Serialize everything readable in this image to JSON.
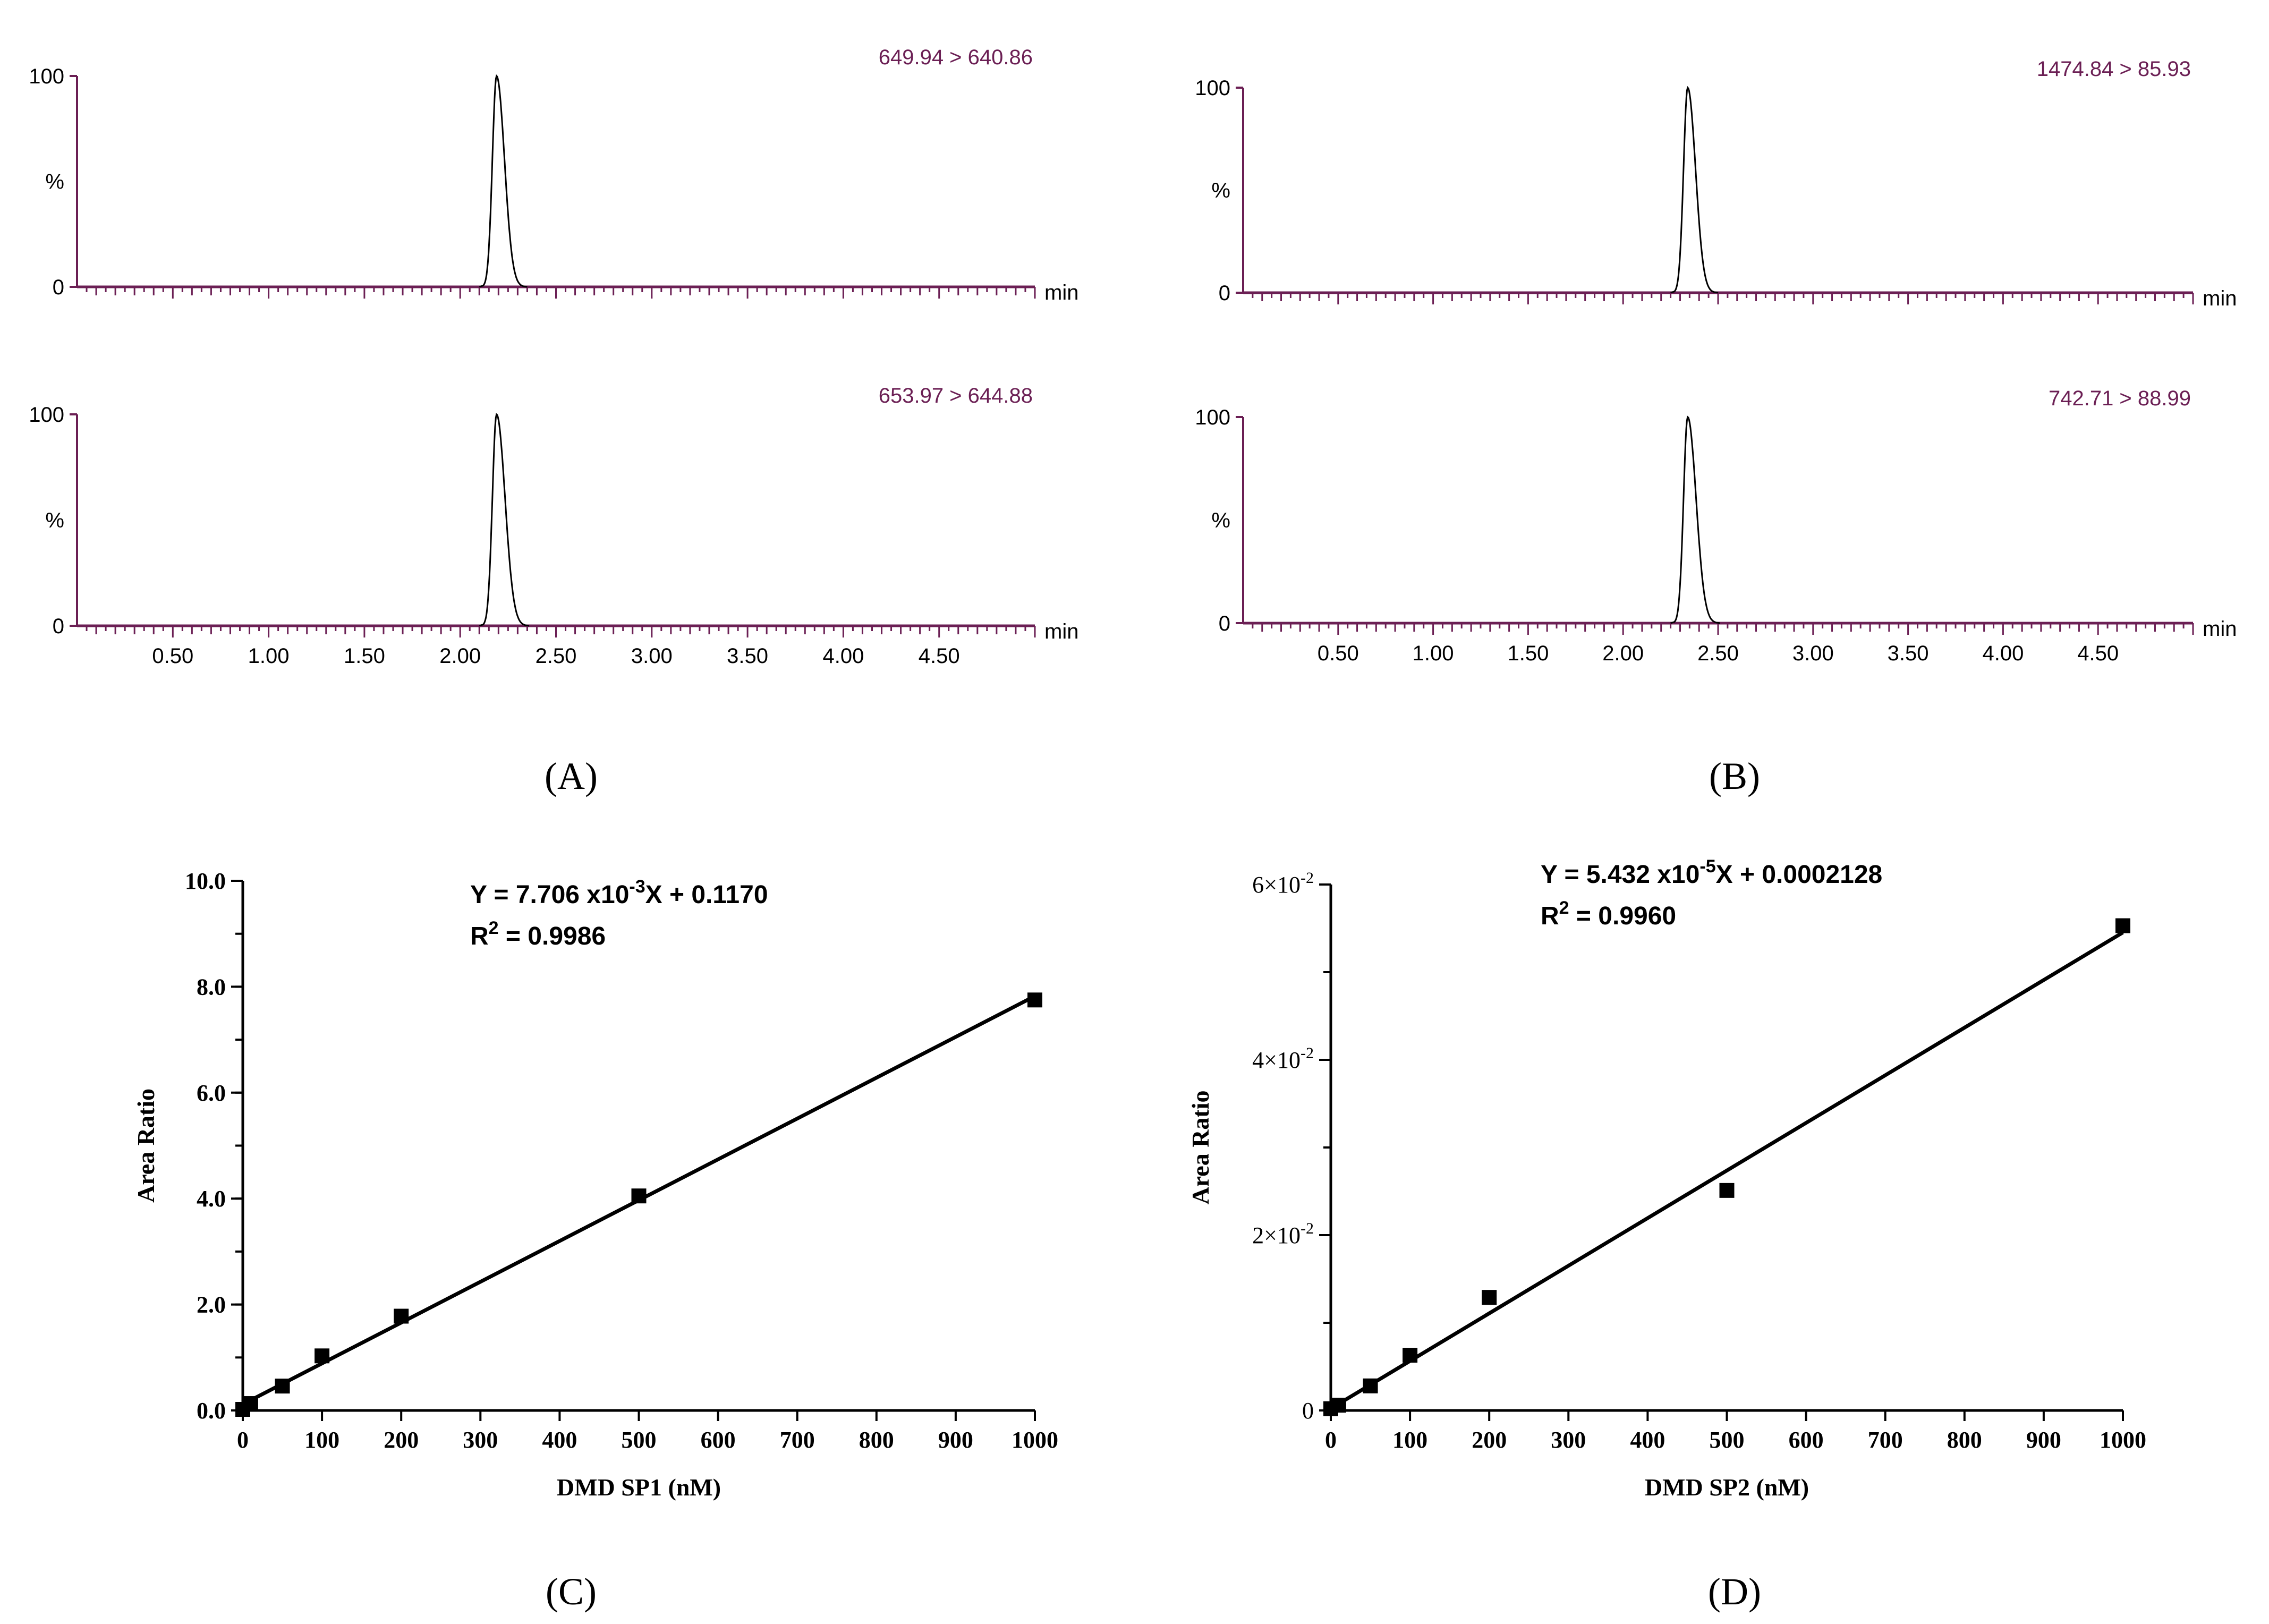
{
  "colors": {
    "axis_purple": "#6b1f54",
    "label_purple": "#6b1f54",
    "trace_black": "#000000",
    "text_black": "#000000",
    "background": "#ffffff"
  },
  "panel_labels": {
    "A": "(A)",
    "B": "(B)",
    "C": "(C)",
    "D": "(D)"
  },
  "chart_data": [
    {
      "id": "A-top",
      "panel": "A",
      "type": "line",
      "title": "649.94 > 640.86",
      "x_unit": "min",
      "y_label": "%",
      "y_ticks": [
        "100",
        "0"
      ],
      "xlim": [
        0,
        5.0
      ],
      "ylim": [
        0,
        100
      ],
      "x_tick_labels": [],
      "peak": {
        "rt": 2.19,
        "height": 100,
        "start": 2.12,
        "end": 2.33
      }
    },
    {
      "id": "A-bottom",
      "panel": "A",
      "type": "line",
      "title": "653.97 > 644.88",
      "x_unit": "min",
      "y_label": "%",
      "y_ticks": [
        "100",
        "0"
      ],
      "xlim": [
        0,
        5.0
      ],
      "ylim": [
        0,
        100
      ],
      "x_tick_labels": [
        "0.50",
        "1.00",
        "1.50",
        "2.00",
        "2.50",
        "3.00",
        "3.50",
        "4.00",
        "4.50"
      ],
      "peak": {
        "rt": 2.19,
        "height": 100,
        "start": 2.12,
        "end": 2.34
      }
    },
    {
      "id": "B-top",
      "panel": "B",
      "type": "line",
      "title": "1474.84 > 85.93",
      "x_unit": "min",
      "y_label": "%",
      "y_ticks": [
        "100",
        "0"
      ],
      "xlim": [
        0,
        5.0
      ],
      "ylim": [
        0,
        100
      ],
      "x_tick_labels": [],
      "peak": {
        "rt": 2.34,
        "height": 100,
        "start": 2.27,
        "end": 2.48
      }
    },
    {
      "id": "B-bottom",
      "panel": "B",
      "type": "line",
      "title": "742.71 > 88.99",
      "x_unit": "min",
      "y_label": "%",
      "y_ticks": [
        "100",
        "0"
      ],
      "xlim": [
        0,
        5.0
      ],
      "ylim": [
        0,
        100
      ],
      "x_tick_labels": [
        "0.50",
        "1.00",
        "1.50",
        "2.00",
        "2.50",
        "3.00",
        "3.50",
        "4.00",
        "4.50"
      ],
      "peak": {
        "rt": 2.34,
        "height": 100,
        "start": 2.27,
        "end": 2.49
      }
    },
    {
      "id": "C",
      "panel": "C",
      "type": "scatter",
      "xlabel": "DMD SP1 (nM)",
      "ylabel": "Area Ratio",
      "xlim": [
        0,
        1000
      ],
      "ylim": [
        0,
        10
      ],
      "x_ticks": [
        0,
        100,
        200,
        300,
        400,
        500,
        600,
        700,
        800,
        900,
        1000
      ],
      "x_tick_labels": [
        "0",
        "100",
        "200",
        "300",
        "400",
        "500",
        "600",
        "700",
        "800",
        "900",
        "1000"
      ],
      "y_ticks": [
        0,
        2,
        4,
        6,
        8,
        10
      ],
      "y_tick_labels": [
        "0.0",
        "2.0",
        "4.0",
        "6.0",
        "8.0",
        "10.0"
      ],
      "y_minor_step": 1,
      "equation": {
        "prefix": "Y = 7.706 x10",
        "exp": "-3",
        "suffix": "X + 0.1170"
      },
      "r2": {
        "prefix": "R",
        "exp": "2",
        "suffix": " = 0.9986"
      },
      "fit": {
        "slope": 0.007706,
        "intercept": 0.117
      },
      "x": [
        0,
        10,
        50,
        100,
        200,
        500,
        1000
      ],
      "y": [
        0.02,
        0.13,
        0.46,
        1.03,
        1.78,
        4.05,
        7.75
      ]
    },
    {
      "id": "D",
      "panel": "D",
      "type": "scatter",
      "xlabel": "DMD SP2 (nM)",
      "ylabel": "Area Ratio",
      "xlim": [
        0,
        1000
      ],
      "ylim": [
        0,
        0.06
      ],
      "x_ticks": [
        0,
        100,
        200,
        300,
        400,
        500,
        600,
        700,
        800,
        900,
        1000
      ],
      "x_tick_labels": [
        "0",
        "100",
        "200",
        "300",
        "400",
        "500",
        "600",
        "700",
        "800",
        "900",
        "1000"
      ],
      "y_ticks": [
        0,
        0.02,
        0.04,
        0.06
      ],
      "y_tick_labels": [
        {
          "base": "0",
          "exp": ""
        },
        {
          "base": "2×10",
          "exp": "-2"
        },
        {
          "base": "4×10",
          "exp": "-2"
        },
        {
          "base": "6×10",
          "exp": "-2"
        }
      ],
      "y_minor_step": 0.01,
      "equation": {
        "prefix": "Y = 5.432 x10",
        "exp": "-5",
        "suffix": "X + 0.0002128"
      },
      "r2": {
        "prefix": "R",
        "exp": "2",
        "suffix": " = 0.9960"
      },
      "fit": {
        "slope": 5.432e-05,
        "intercept": 0.0002128
      },
      "x": [
        0,
        10,
        50,
        100,
        200,
        500,
        1000
      ],
      "y": [
        0.0002,
        0.0006,
        0.0028,
        0.0063,
        0.0129,
        0.0251,
        0.0553
      ]
    }
  ]
}
